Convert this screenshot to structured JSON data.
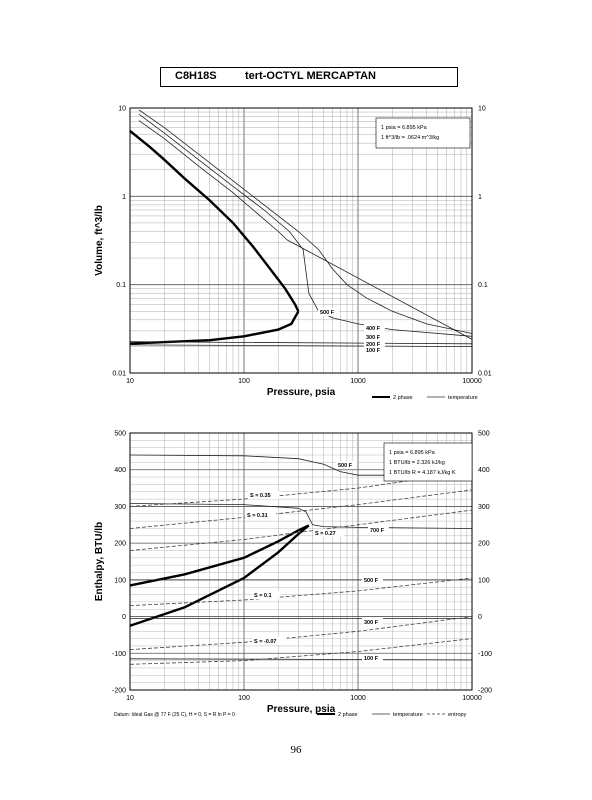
{
  "header": {
    "formula": "C8H18S",
    "name": "tert-OCTYL MERCAPTAN"
  },
  "page_number": "96",
  "chart_data": [
    {
      "type": "line",
      "x_scale": "log",
      "y_scale": "log",
      "xlim": [
        10,
        10000
      ],
      "ylim": [
        0.01,
        10
      ],
      "xlabel": "Pressure,  psia",
      "ylabel": "Volume, ft^3/lb",
      "x_ticks": [
        "10",
        "100",
        "1000",
        "10000"
      ],
      "y_ticks": [
        "0.01",
        "0.1",
        "1",
        "10"
      ],
      "y_ticks_right": [
        "0.01",
        "0.1",
        "1",
        "10"
      ],
      "conversions": [
        "1 psia  =  6.895 kPa",
        "1 ft^3/lb  =  .0624 m^3/kg"
      ],
      "legend": [
        "2 phase",
        "temperature"
      ],
      "series": [
        {
          "role": "2 phase",
          "x": [
            10,
            15,
            20,
            30,
            50,
            80,
            120,
            170,
            230,
            280,
            300
          ],
          "y": [
            5.5,
            3.6,
            2.6,
            1.6,
            0.9,
            0.5,
            0.27,
            0.15,
            0.09,
            0.06,
            0.05
          ]
        },
        {
          "role": "2 phase",
          "x": [
            10,
            50,
            100,
            200,
            260,
            300
          ],
          "y": [
            0.0215,
            0.0235,
            0.026,
            0.031,
            0.036,
            0.05
          ]
        },
        {
          "name": "500 F",
          "role": "temperature",
          "x": [
            12,
            20,
            40,
            80,
            150,
            300,
            450,
            600,
            800,
            1200,
            2000,
            4000,
            10000
          ],
          "y": [
            9.5,
            6,
            3,
            1.5,
            0.8,
            0.4,
            0.25,
            0.15,
            0.1,
            0.07,
            0.05,
            0.036,
            0.028
          ]
        },
        {
          "name": "400 F",
          "role": "temperature",
          "x": [
            12,
            20,
            40,
            80,
            150,
            250,
            330,
            370,
            450,
            600,
            1000,
            2000,
            10000
          ],
          "y": [
            8.5,
            5.2,
            2.6,
            1.3,
            0.7,
            0.4,
            0.25,
            0.08,
            0.05,
            0.042,
            0.036,
            0.031,
            0.026
          ]
        },
        {
          "name": "300 F",
          "role": "temperature",
          "x": [
            12,
            20,
            40,
            80,
            150,
            200,
            240,
            10000
          ],
          "y": [
            7.2,
            4.5,
            2.2,
            1.1,
            0.55,
            0.4,
            0.32,
            0.024
          ]
        },
        {
          "name": "200 F",
          "role": "temperature",
          "x": [
            10,
            10000
          ],
          "y": [
            0.0226,
            0.0214
          ]
        },
        {
          "name": "100 F",
          "role": "temperature",
          "x": [
            10,
            10000
          ],
          "y": [
            0.0208,
            0.0199
          ]
        }
      ],
      "curve_labels": [
        "500 F",
        "400 F",
        "300 F",
        "200 F",
        "100 F"
      ]
    },
    {
      "type": "line",
      "x_scale": "log",
      "y_scale": "linear",
      "xlim": [
        10,
        10000
      ],
      "ylim": [
        -200,
        500
      ],
      "xlabel": "Pressure,  psia",
      "ylabel": "Enthalpy, BTU/lb",
      "x_ticks": [
        "10",
        "100",
        "1000",
        "10000"
      ],
      "y_ticks": [
        "-200",
        "-100",
        "0",
        "100",
        "200",
        "300",
        "400",
        "500"
      ],
      "y_ticks_right": [
        "-200",
        "-100",
        "0",
        "100",
        "200",
        "300",
        "400",
        "500"
      ],
      "conversions": [
        "1 psia  =  6.895 kPa",
        "1 BTU/lb  =  2.326 kJ/kg",
        "1 BTU/lb R  =  4.187 kJ/kg K"
      ],
      "legend": [
        "2 phase",
        "temperature",
        "entropy"
      ],
      "datum_note": "Datum: Ideal Gas @ 77 F (25 C),  H = 0,  S = R ln P = 0",
      "series": [
        {
          "role": "2 phase",
          "x": [
            10,
            30,
            100,
            200,
            300,
            370
          ],
          "y": [
            85,
            115,
            160,
            205,
            235,
            248
          ]
        },
        {
          "role": "2 phase",
          "x": [
            10,
            30,
            100,
            200,
            300,
            370
          ],
          "y": [
            -25,
            25,
            105,
            175,
            225,
            248
          ]
        },
        {
          "name": "500 F",
          "role": "temperature",
          "x": [
            10,
            100,
            300,
            500,
            700,
            1000,
            3000,
            10000
          ],
          "y": [
            440,
            438,
            430,
            415,
            395,
            385,
            385,
            385
          ]
        },
        {
          "name": "400 F",
          "role": "temperature",
          "x": [
            10,
            100,
            300,
            350,
            400,
            500,
            1000,
            10000
          ],
          "y": [
            308,
            305,
            295,
            285,
            250,
            245,
            243,
            240
          ]
        },
        {
          "name": "300 F",
          "role": "temperature",
          "x": [
            10,
            10000
          ],
          "y": [
            100,
            100
          ]
        },
        {
          "name": "300 F",
          "role": "temperature",
          "x": [
            10,
            10000
          ],
          "y": [
            -5,
            -5
          ]
        },
        {
          "name": "100 F",
          "role": "temperature",
          "x": [
            10,
            10000
          ],
          "y": [
            -115,
            -118
          ]
        },
        {
          "name": "S = 0.35",
          "role": "entropy",
          "x": [
            10,
            100,
            1000,
            10000
          ],
          "y": [
            300,
            320,
            350,
            395
          ]
        },
        {
          "name": "S = 0.31",
          "role": "entropy",
          "x": [
            10,
            100,
            1000,
            10000
          ],
          "y": [
            240,
            270,
            305,
            345
          ]
        },
        {
          "name": "S = 0.27",
          "role": "entropy",
          "x": [
            10,
            100,
            1000,
            10000
          ],
          "y": [
            180,
            210,
            250,
            290
          ]
        },
        {
          "name": "S = 0.1",
          "role": "entropy",
          "x": [
            10,
            100,
            1000,
            10000
          ],
          "y": [
            30,
            45,
            70,
            105
          ]
        },
        {
          "name": "S = -0.07",
          "role": "entropy",
          "x": [
            10,
            100,
            1000,
            10000
          ],
          "y": [
            -90,
            -70,
            -40,
            0
          ]
        },
        {
          "role": "entropy",
          "x": [
            10,
            100,
            1000,
            10000
          ],
          "y": [
            -130,
            -120,
            -95,
            -60
          ]
        }
      ],
      "curve_labels": [
        "500 F",
        "S = 0.35",
        "S = 0.31",
        "700 F",
        "S = 0.27",
        "500 F",
        "S = 0.1",
        "300 F",
        "S = -0.07",
        "100 F"
      ]
    }
  ]
}
